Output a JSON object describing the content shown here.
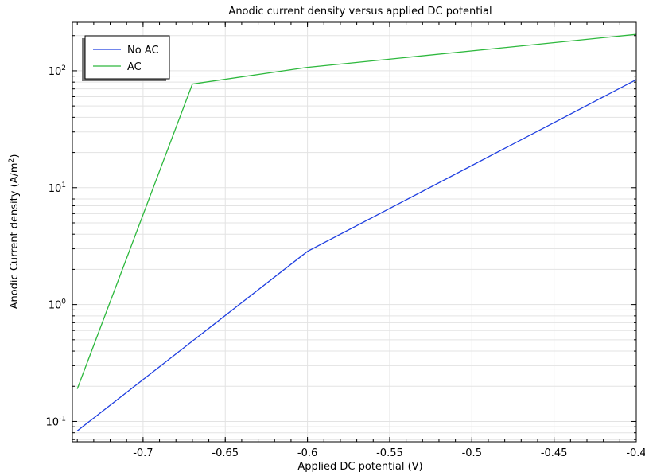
{
  "chart_data": {
    "type": "line",
    "title": "Anodic current density versus applied DC potential",
    "xlabel": "Applied DC potential (V)",
    "ylabel_main": "Anodic Current density (A/m",
    "ylabel_sup": "2",
    "ylabel_end": ")",
    "xlim": [
      -0.743,
      -0.4
    ],
    "ylim": [
      0.067,
      260
    ],
    "yscale": "log",
    "grid": true,
    "legend_position": "top-left",
    "x_ticks": [
      -0.7,
      -0.65,
      -0.6,
      -0.55,
      -0.5,
      -0.45,
      -0.4
    ],
    "x_tick_labels": [
      "-0.7",
      "-0.65",
      "-0.6",
      "-0.55",
      "-0.5",
      "-0.45",
      "-0.4"
    ],
    "y_ticks": [
      {
        "value": 0.1,
        "base": "10",
        "exp": "-1"
      },
      {
        "value": 1,
        "base": "10",
        "exp": "0"
      },
      {
        "value": 10,
        "base": "10",
        "exp": "1"
      },
      {
        "value": 100,
        "base": "10",
        "exp": "2"
      }
    ],
    "series": [
      {
        "name": "No AC",
        "color": "#1f3fe0",
        "x": [
          -0.74,
          -0.6,
          -0.4
        ],
        "y": [
          0.083,
          2.85,
          84
        ]
      },
      {
        "name": "AC",
        "color": "#2db83d",
        "x": [
          -0.74,
          -0.67,
          -0.6,
          -0.4
        ],
        "y": [
          0.19,
          77,
          107,
          205
        ]
      }
    ]
  }
}
